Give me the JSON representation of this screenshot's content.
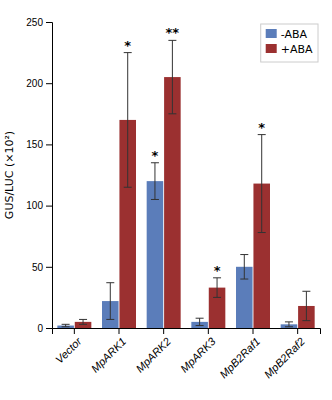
{
  "chart_data": {
    "type": "bar",
    "categories": [
      "Vector",
      "MpARK1",
      "MpARK2",
      "MpARK3",
      "MpB2Raf1",
      "MpB2Raf2"
    ],
    "series": [
      {
        "name": "-ABA",
        "color": "#5b7dba",
        "values": [
          2,
          22,
          120,
          5,
          50,
          3
        ],
        "errors": [
          1,
          15,
          15,
          3,
          10,
          2
        ],
        "stars": [
          null,
          null,
          "*",
          null,
          null,
          null
        ]
      },
      {
        "name": "+ABA",
        "color": "#9b3030",
        "values": [
          5,
          170,
          205,
          33,
          118,
          18
        ],
        "errors": [
          2,
          55,
          30,
          8,
          40,
          12
        ],
        "stars": [
          null,
          "*",
          "**",
          "*",
          "*",
          null
        ]
      }
    ],
    "ylabel": "GUS/LUC (×10²)",
    "ylim": [
      0,
      250
    ],
    "yticks": [
      0,
      50,
      100,
      150,
      200,
      250
    ],
    "legend": "upper right"
  }
}
